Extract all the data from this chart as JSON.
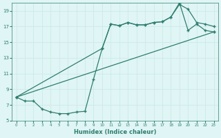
{
  "line1_x": [
    0,
    1,
    2,
    3,
    4,
    5,
    6,
    7,
    8,
    9,
    10,
    11,
    12,
    13,
    14,
    15,
    16,
    17,
    18,
    19,
    20,
    21,
    22,
    23
  ],
  "line1_y": [
    8.0,
    7.5,
    7.5,
    6.5,
    6.1,
    5.9,
    5.9,
    6.1,
    6.2,
    10.3,
    14.2,
    17.3,
    17.1,
    17.5,
    17.2,
    17.2,
    17.5,
    17.6,
    18.2,
    19.8,
    19.2,
    17.5,
    17.3,
    17.0
  ],
  "line2_x": [
    0,
    10,
    11,
    12,
    13,
    14,
    15,
    16,
    17,
    18,
    19,
    20,
    21,
    22,
    23
  ],
  "line2_y": [
    8.0,
    14.2,
    17.3,
    17.1,
    17.5,
    17.2,
    17.2,
    17.5,
    17.6,
    18.2,
    20.0,
    16.5,
    17.3,
    16.5,
    16.3
  ],
  "line3_x": [
    0,
    23
  ],
  "line3_y": [
    8.0,
    16.3
  ],
  "line_color": "#2e7d6e",
  "bg_color": "#e0f5f5",
  "grid_color": "#c8e8e8",
  "xlabel": "Humidex (Indice chaleur)",
  "xlim": [
    -0.5,
    23.5
  ],
  "ylim": [
    5,
    20
  ],
  "yticks": [
    5,
    7,
    9,
    11,
    13,
    15,
    17,
    19
  ],
  "xticks": [
    0,
    1,
    2,
    3,
    4,
    5,
    6,
    7,
    8,
    9,
    10,
    11,
    12,
    13,
    14,
    15,
    16,
    17,
    18,
    19,
    20,
    21,
    22,
    23
  ],
  "marker": "+"
}
